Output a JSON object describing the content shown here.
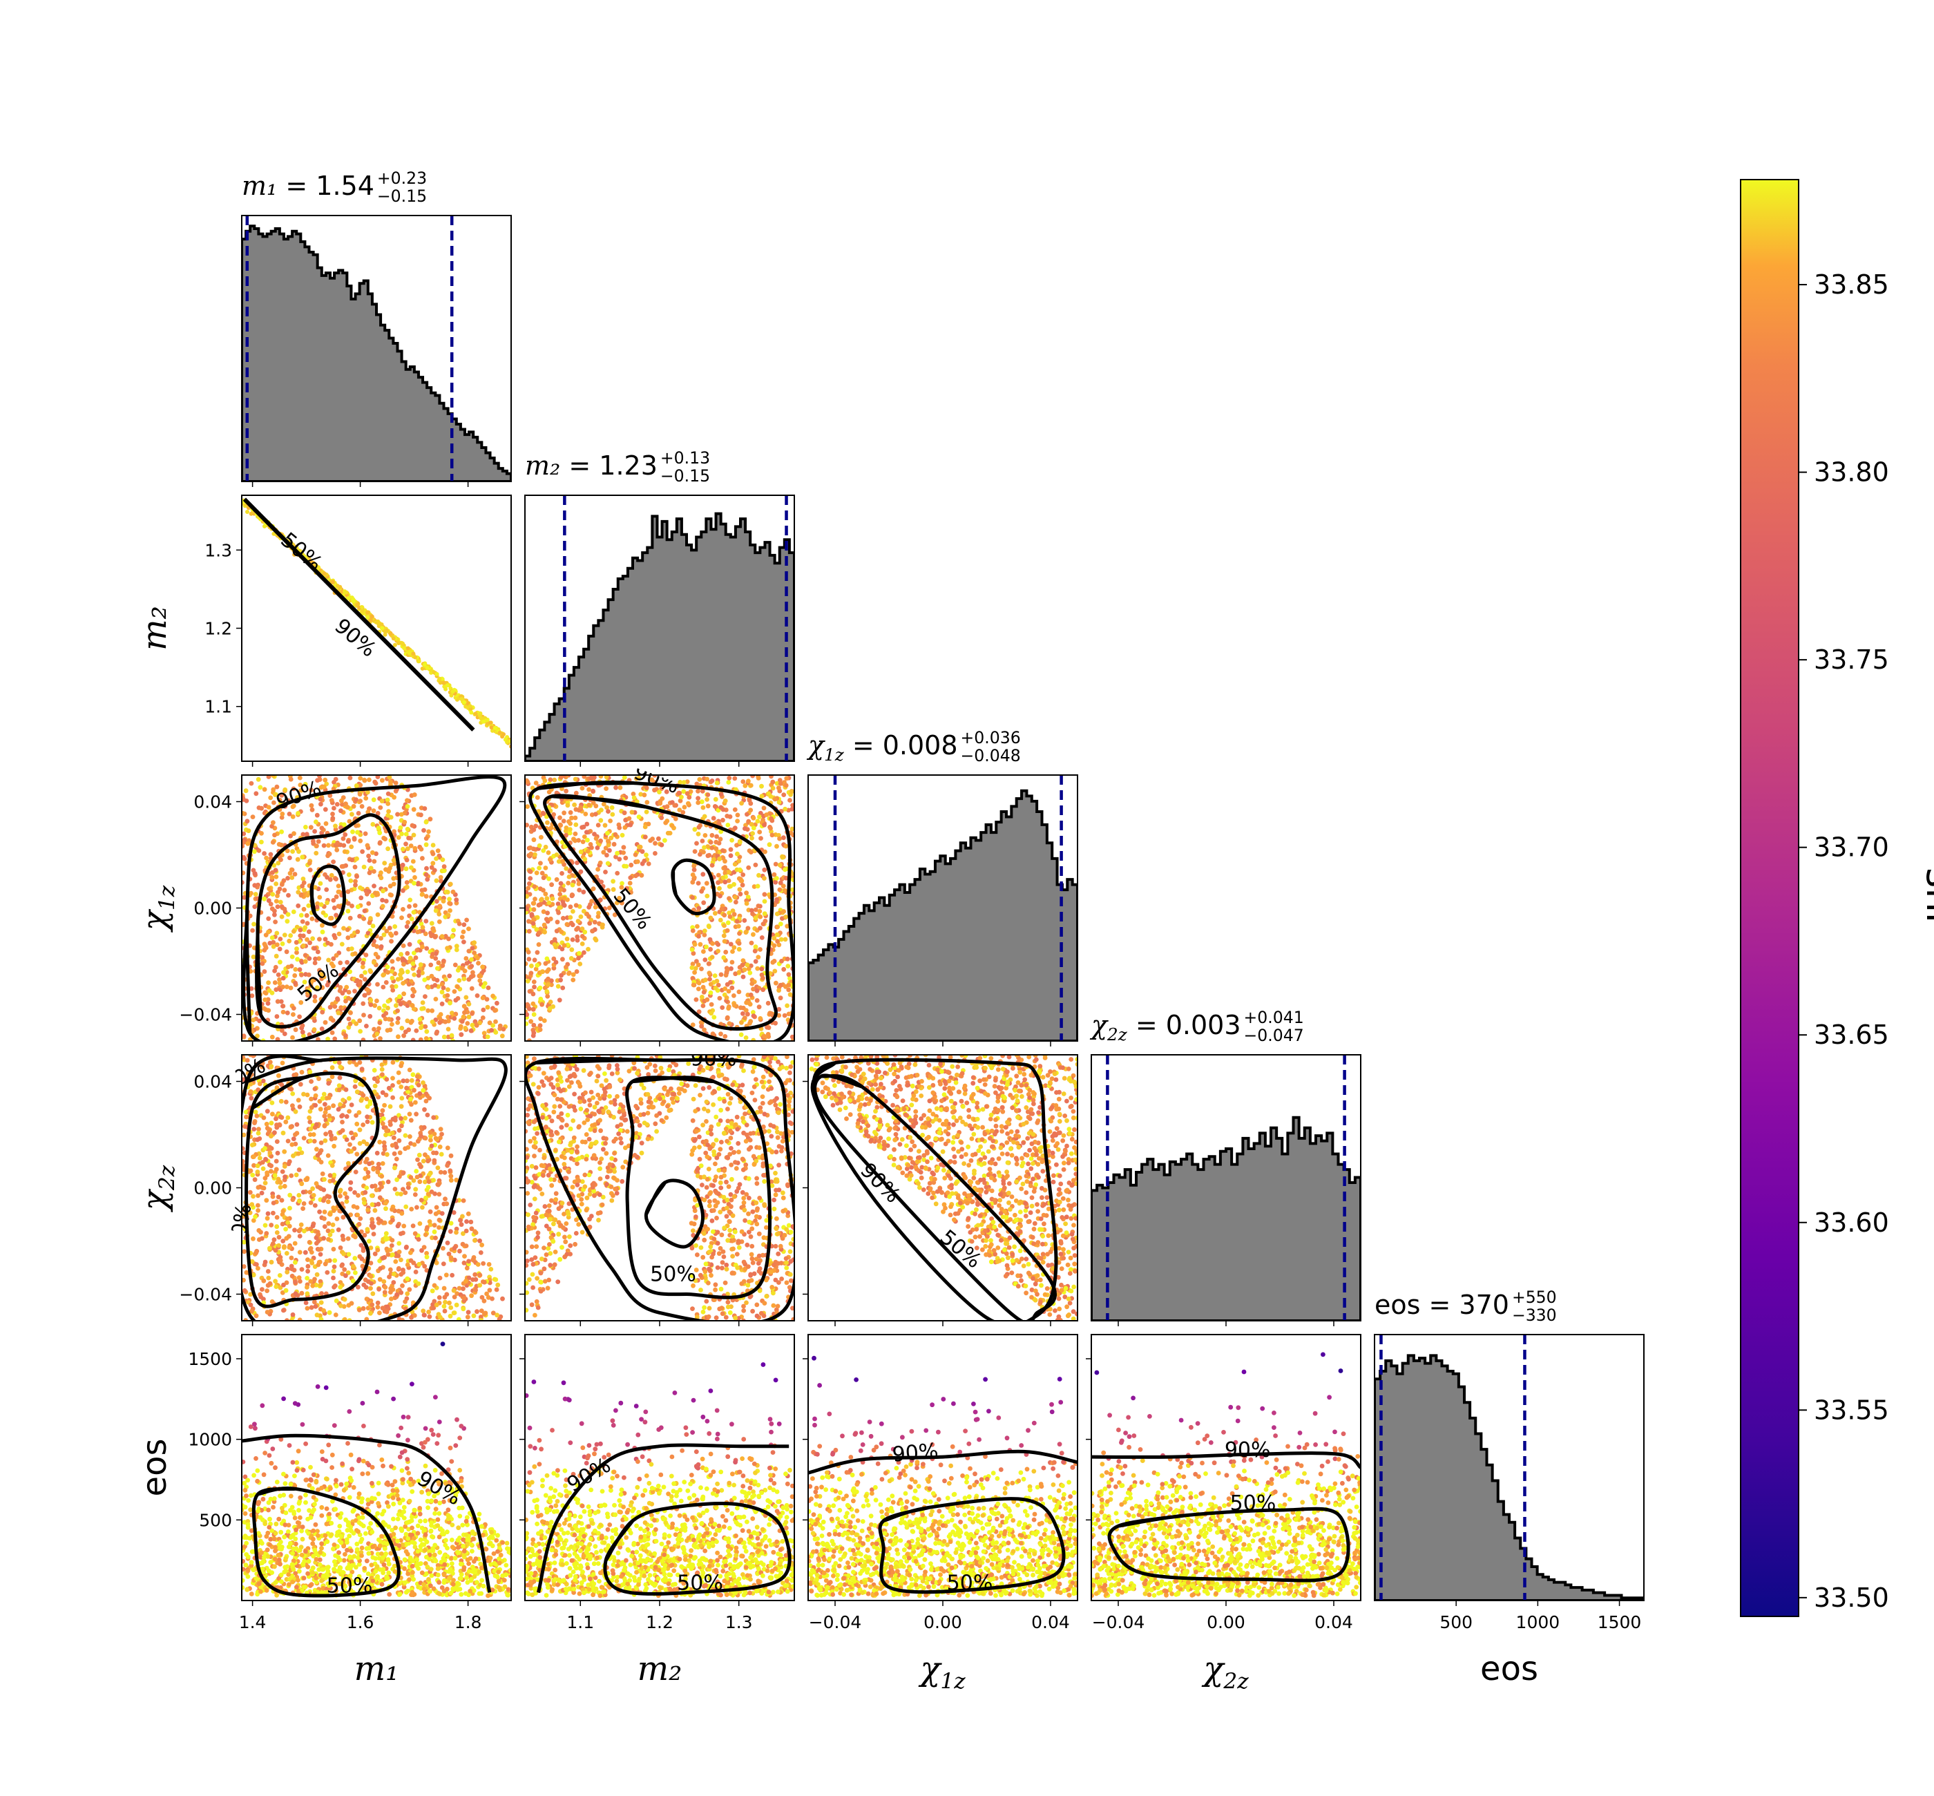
{
  "chart_data": {
    "type": "scatter",
    "subtype": "corner-plot",
    "parameters": [
      {
        "key": "m1",
        "axis_label": "m₁",
        "range": [
          1.38,
          1.88
        ],
        "ticks": [
          1.4,
          1.6,
          1.8
        ],
        "tick_labels": [
          "1.4",
          "1.6",
          "1.8"
        ],
        "title": {
          "name": "m₁",
          "median": "1.54",
          "plus": "+0.23",
          "minus": "−0.15"
        },
        "interval": [
          1.39,
          1.77
        ]
      },
      {
        "key": "m2",
        "axis_label": "m₂",
        "range": [
          1.03,
          1.37
        ],
        "ticks": [
          1.1,
          1.2,
          1.3
        ],
        "tick_labels": [
          "1.1",
          "1.2",
          "1.3"
        ],
        "title": {
          "name": "m₂",
          "median": "1.23",
          "plus": "+0.13",
          "minus": "−0.15"
        },
        "interval": [
          1.08,
          1.36
        ]
      },
      {
        "key": "chi1z",
        "axis_label": "χ1z",
        "range": [
          -0.05,
          0.05
        ],
        "ticks": [
          -0.04,
          0.0,
          0.04
        ],
        "tick_labels": [
          "−0.04",
          "0.00",
          "0.04"
        ],
        "title": {
          "name": "χ1z",
          "median": "0.008",
          "plus": "+0.036",
          "minus": "−0.048"
        },
        "interval": [
          -0.04,
          0.044
        ]
      },
      {
        "key": "chi2z",
        "axis_label": "χ2z",
        "range": [
          -0.05,
          0.05
        ],
        "ticks": [
          -0.04,
          0.0,
          0.04
        ],
        "tick_labels": [
          "−0.04",
          "0.00",
          "0.04"
        ],
        "title": {
          "name": "χ2z",
          "median": "0.003",
          "plus": "+0.041",
          "minus": "−0.047"
        },
        "interval": [
          -0.044,
          0.044
        ]
      },
      {
        "key": "eos",
        "axis_label": "eos",
        "range": [
          0,
          1650
        ],
        "ticks": [
          500,
          1000,
          1500
        ],
        "tick_labels": [
          "500",
          "1000",
          "1500"
        ],
        "title": {
          "name": "eos",
          "median": "370",
          "plus": "+550",
          "minus": "−330"
        },
        "interval": [
          40,
          920
        ]
      }
    ],
    "histograms": {
      "m1": [
        0.93,
        0.96,
        0.98,
        0.97,
        0.95,
        0.94,
        0.95,
        0.96,
        0.97,
        0.95,
        0.93,
        0.94,
        0.96,
        0.95,
        0.92,
        0.9,
        0.88,
        0.87,
        0.82,
        0.79,
        0.8,
        0.78,
        0.8,
        0.81,
        0.8,
        0.75,
        0.7,
        0.72,
        0.76,
        0.77,
        0.72,
        0.68,
        0.64,
        0.6,
        0.58,
        0.55,
        0.53,
        0.5,
        0.46,
        0.43,
        0.44,
        0.42,
        0.4,
        0.38,
        0.36,
        0.34,
        0.33,
        0.3,
        0.28,
        0.26,
        0.24,
        0.22,
        0.2,
        0.18,
        0.19,
        0.17,
        0.15,
        0.13,
        0.11,
        0.09,
        0.07,
        0.05,
        0.04,
        0.03
      ],
      "m2": [
        0.02,
        0.05,
        0.09,
        0.12,
        0.15,
        0.18,
        0.22,
        0.24,
        0.28,
        0.33,
        0.36,
        0.4,
        0.43,
        0.48,
        0.52,
        0.54,
        0.58,
        0.62,
        0.66,
        0.7,
        0.71,
        0.74,
        0.78,
        0.77,
        0.8,
        0.82,
        0.94,
        0.86,
        0.92,
        0.85,
        0.88,
        0.93,
        0.87,
        0.83,
        0.81,
        0.86,
        0.88,
        0.93,
        0.89,
        0.95,
        0.91,
        0.87,
        0.86,
        0.9,
        0.93,
        0.88,
        0.83,
        0.8,
        0.82,
        0.84,
        0.79,
        0.76,
        0.82,
        0.85,
        0.8
      ],
      "chi1z": [
        0.3,
        0.31,
        0.33,
        0.35,
        0.37,
        0.36,
        0.39,
        0.42,
        0.44,
        0.47,
        0.49,
        0.52,
        0.5,
        0.53,
        0.55,
        0.52,
        0.56,
        0.58,
        0.6,
        0.57,
        0.6,
        0.62,
        0.66,
        0.64,
        0.65,
        0.69,
        0.71,
        0.68,
        0.7,
        0.73,
        0.76,
        0.74,
        0.78,
        0.77,
        0.8,
        0.83,
        0.8,
        0.84,
        0.88,
        0.86,
        0.9,
        0.93,
        0.96,
        0.94,
        0.92,
        0.88,
        0.83,
        0.76,
        0.7,
        0.6,
        0.58,
        0.62,
        0.6
      ],
      "chi2z": [
        0.5,
        0.52,
        0.51,
        0.53,
        0.56,
        0.55,
        0.58,
        0.52,
        0.57,
        0.6,
        0.62,
        0.58,
        0.6,
        0.56,
        0.61,
        0.6,
        0.62,
        0.64,
        0.6,
        0.58,
        0.62,
        0.63,
        0.6,
        0.65,
        0.66,
        0.6,
        0.64,
        0.7,
        0.66,
        0.68,
        0.72,
        0.67,
        0.74,
        0.7,
        0.64,
        0.72,
        0.78,
        0.7,
        0.74,
        0.68,
        0.71,
        0.69,
        0.72,
        0.64,
        0.6,
        0.58,
        0.53,
        0.55
      ],
      "eos": [
        0.85,
        0.88,
        0.92,
        0.9,
        0.87,
        0.91,
        0.94,
        0.92,
        0.93,
        0.91,
        0.94,
        0.92,
        0.9,
        0.88,
        0.87,
        0.82,
        0.76,
        0.7,
        0.64,
        0.58,
        0.52,
        0.46,
        0.38,
        0.33,
        0.3,
        0.24,
        0.2,
        0.16,
        0.13,
        0.1,
        0.09,
        0.08,
        0.07,
        0.07,
        0.06,
        0.05,
        0.05,
        0.04,
        0.04,
        0.03,
        0.03,
        0.02,
        0.02,
        0.02,
        0.01,
        0.01,
        0.01,
        0.01
      ]
    },
    "contour_levels": [
      "50%",
      "90%"
    ],
    "colorbar": {
      "label": "snr",
      "range": [
        33.495,
        33.878
      ],
      "ticks": [
        33.5,
        33.55,
        33.6,
        33.65,
        33.7,
        33.75,
        33.8,
        33.85
      ],
      "tick_labels": [
        "33.50",
        "33.55",
        "33.60",
        "33.65",
        "33.70",
        "33.75",
        "33.80",
        "33.85"
      ],
      "colormap": "plasma"
    },
    "colors": {
      "histogram_fill": "#808080",
      "histogram_edge": "#000000",
      "interval_line": "#00008b",
      "contour": "#000000"
    }
  }
}
